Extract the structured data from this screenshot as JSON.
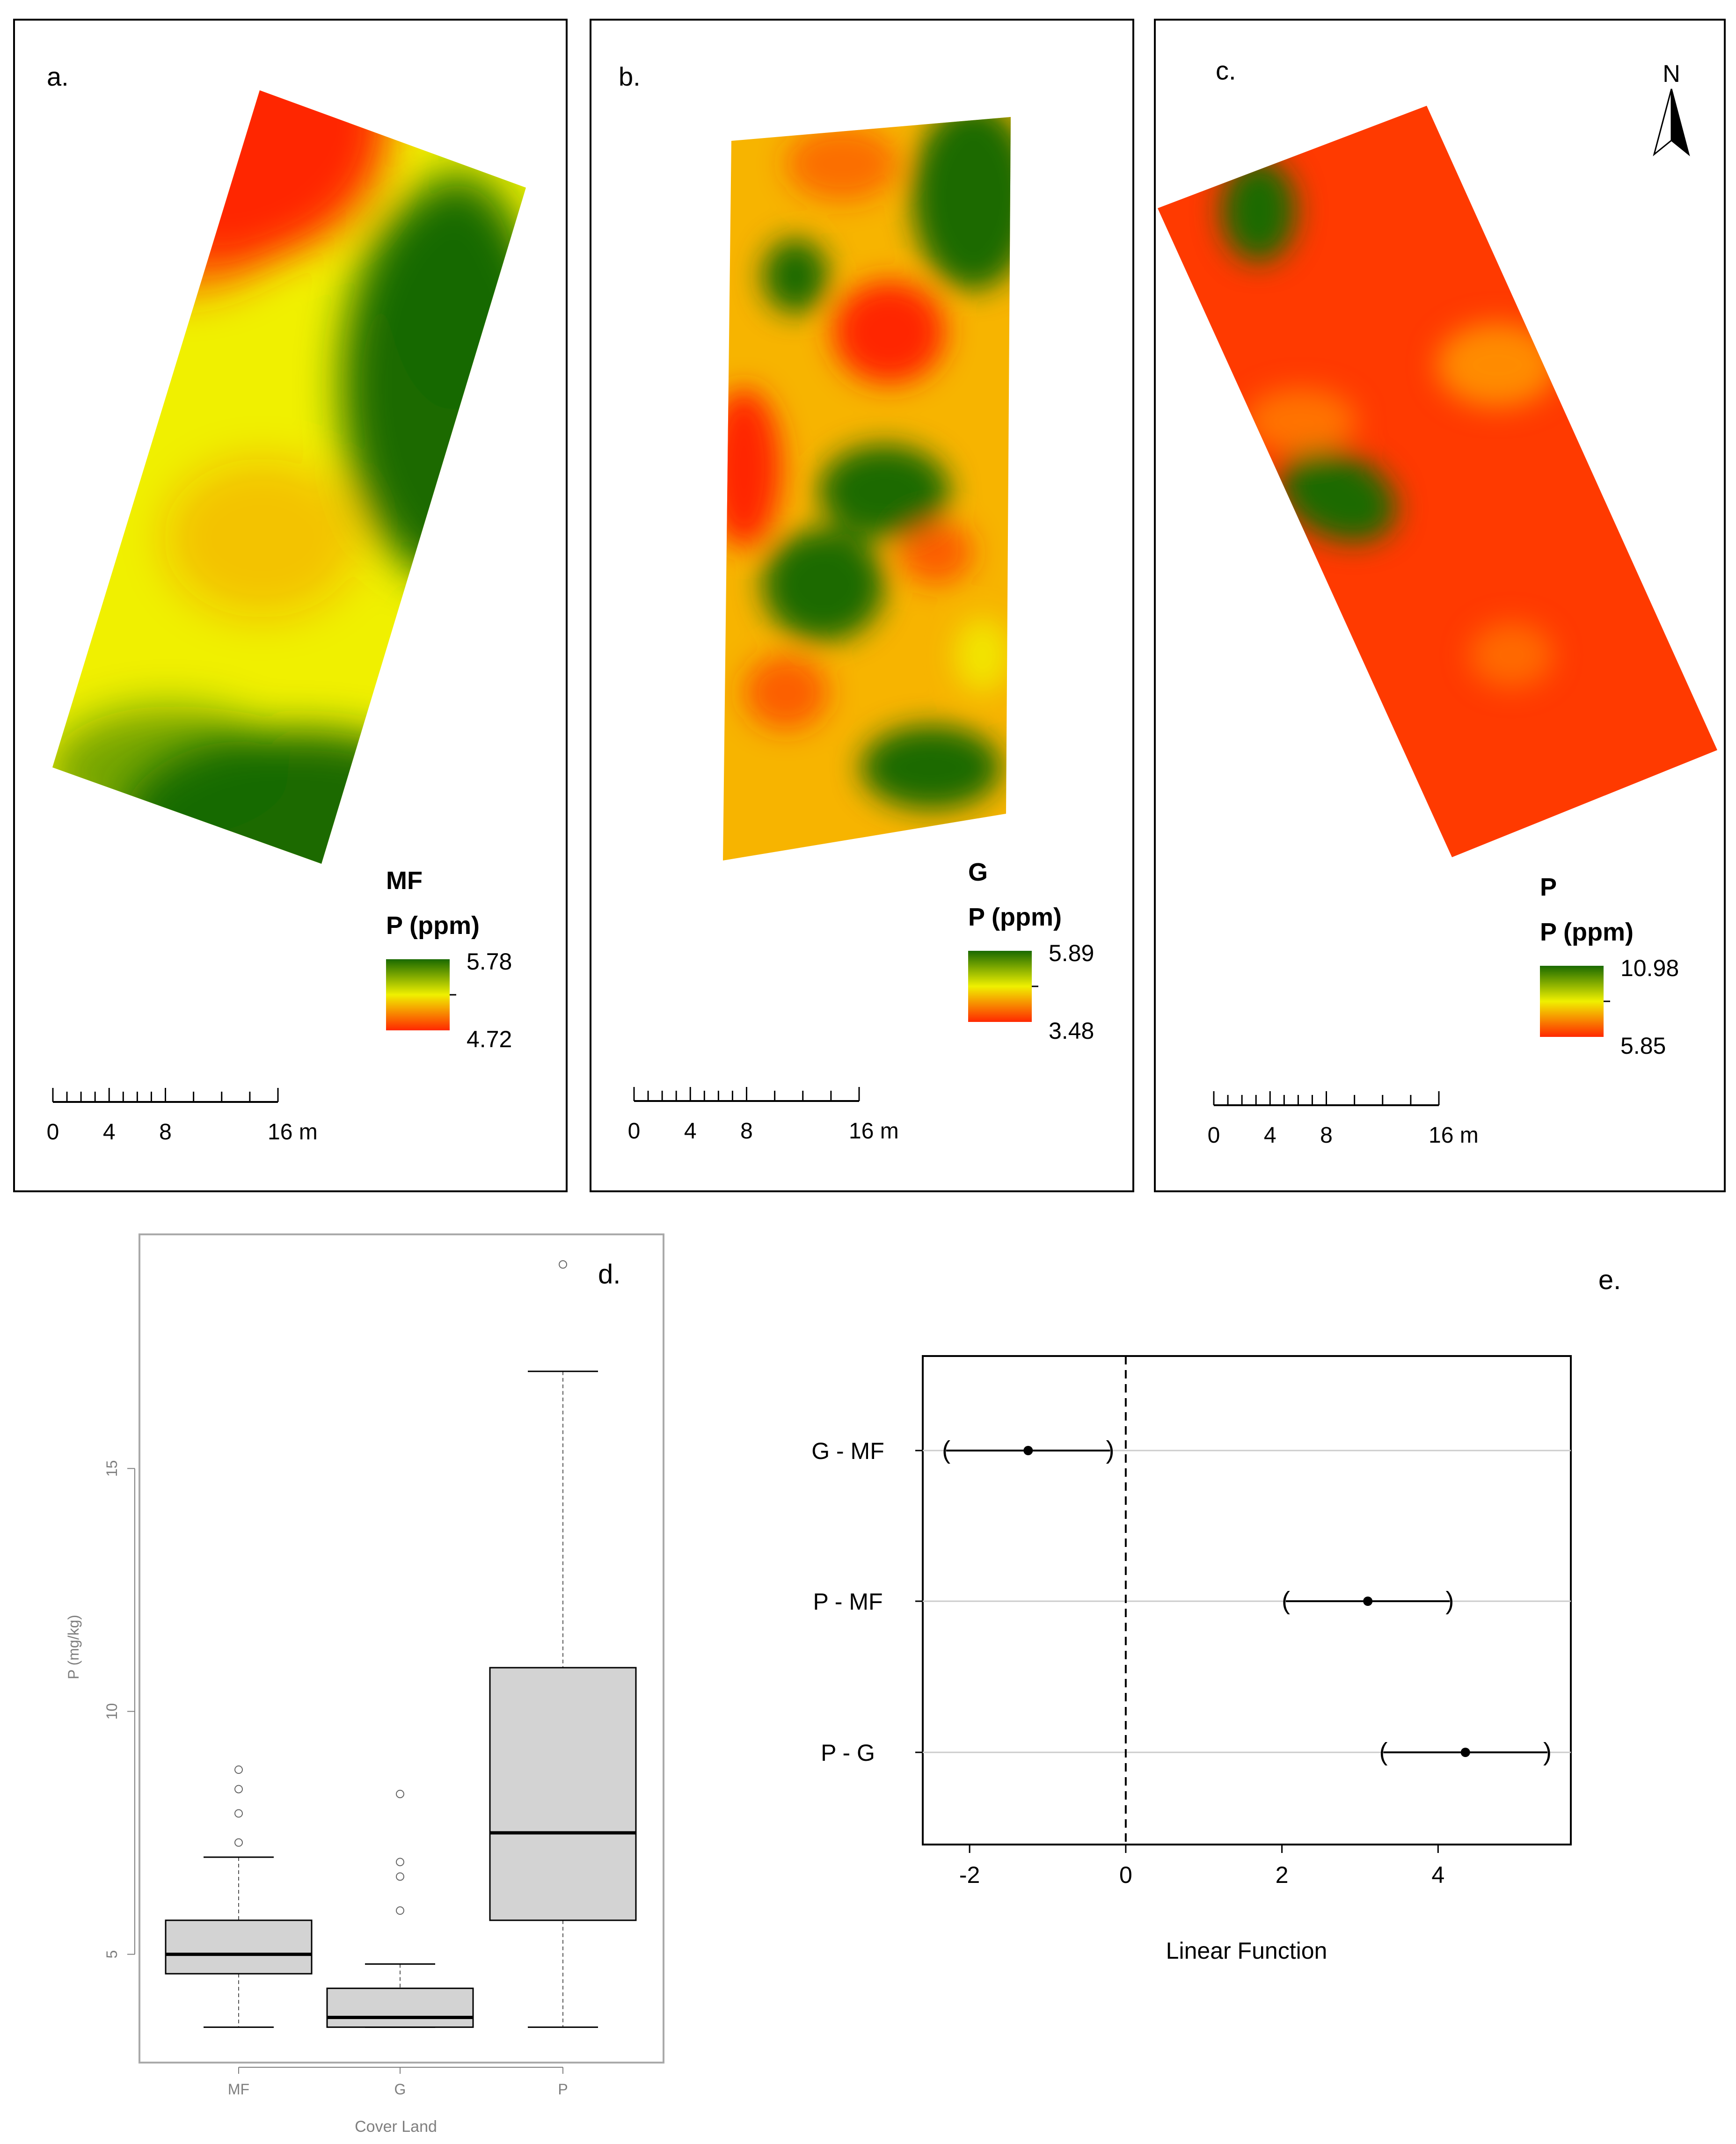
{
  "colors": {
    "high": "#1a6a00",
    "mid": "#f0f000",
    "low": "#ff2800",
    "box_fill": "#d3d3d3",
    "grid": "#cccccc",
    "faint_axis": "#7f7f7f"
  },
  "maps": [
    {
      "label": "a.",
      "cover": "MF",
      "variable": "P (ppm)",
      "max_label": "5.78",
      "min_label": "4.72",
      "scale_ticks": [
        "0",
        "4",
        "8",
        "16 m"
      ]
    },
    {
      "label": "b.",
      "cover": "G",
      "variable": "P (ppm)",
      "max_label": "5.89",
      "min_label": "3.48",
      "scale_ticks": [
        "0",
        "4",
        "8",
        "16 m"
      ]
    },
    {
      "label": "c.",
      "cover": "P",
      "variable": "P (ppm)",
      "max_label": "10.98",
      "min_label": "5.85",
      "scale_ticks": [
        "0",
        "4",
        "8",
        "16 m"
      ],
      "north_label": "N"
    }
  ],
  "chart_data": [
    {
      "type": "box",
      "panel_label": "d.",
      "xlabel": "Cover Land",
      "ylabel": "P (mg/kg)",
      "ylim": [
        2.8,
        19.8
      ],
      "yticks": [
        5,
        10,
        15
      ],
      "categories": [
        "MF",
        "G",
        "P"
      ],
      "boxes": [
        {
          "name": "MF",
          "whisker_low": 3.5,
          "q1": 4.6,
          "median": 5.0,
          "q3": 5.7,
          "whisker_high": 7.0,
          "outliers": [
            7.3,
            7.9,
            8.4,
            8.8
          ]
        },
        {
          "name": "G",
          "whisker_low": 3.5,
          "q1": 3.5,
          "median": 3.7,
          "q3": 4.3,
          "whisker_high": 4.8,
          "outliers": [
            5.9,
            6.6,
            6.9,
            8.3
          ]
        },
        {
          "name": "P",
          "whisker_low": 3.5,
          "q1": 5.7,
          "median": 7.5,
          "q3": 10.9,
          "whisker_high": 17.0,
          "outliers": [
            19.2
          ]
        }
      ]
    },
    {
      "type": "interval",
      "panel_label": "e.",
      "xlabel": "Linear Function",
      "xlim": [
        -2.6,
        5.7
      ],
      "xticks": [
        -2,
        0,
        2,
        4
      ],
      "reference_line": 0,
      "comparisons": [
        {
          "label": "G - MF",
          "estimate": -1.25,
          "lower": -2.3,
          "upper": -0.2
        },
        {
          "label": "P - MF",
          "estimate": 3.1,
          "lower": 2.05,
          "upper": 4.15
        },
        {
          "label": "P - G",
          "estimate": 4.35,
          "lower": 3.3,
          "upper": 5.4
        }
      ]
    }
  ]
}
